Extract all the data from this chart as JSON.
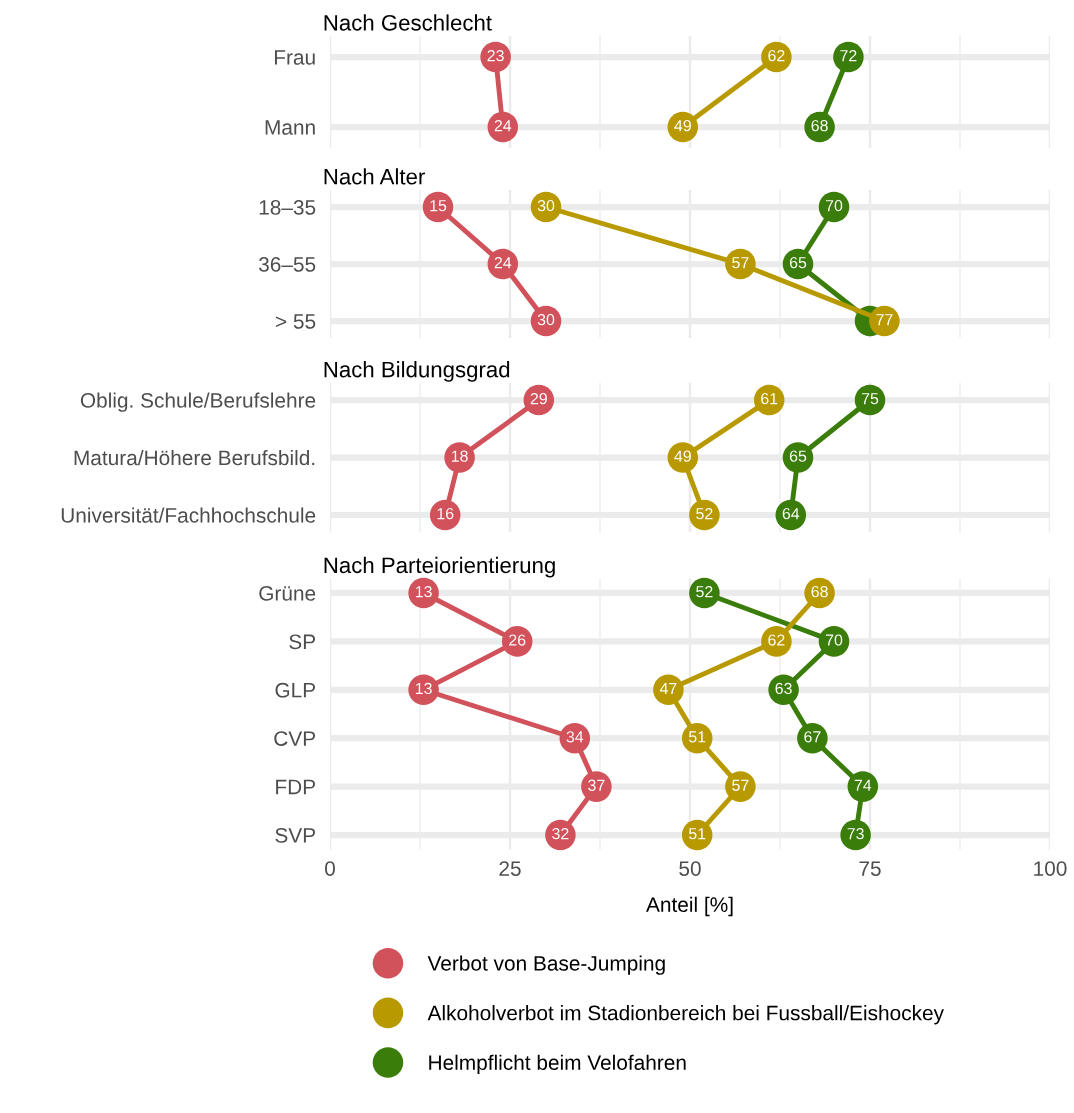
{
  "chart_data": [
    {
      "type": "line",
      "orientation": "horizontal",
      "title": "Nach Geschlecht",
      "categories": [
        "Frau",
        "Mann"
      ],
      "xlim": [
        0,
        100
      ],
      "xticks": [
        0,
        {
          "value": 12.5,
          "label": null
        },
        25,
        {
          "value": 37.5,
          "label": null
        },
        50,
        {
          "value": 62.5,
          "label": null
        },
        75,
        {
          "value": 87.5,
          "label": null
        },
        100
      ],
      "tick_labels": "y",
      "grid": true,
      "marker": "circle",
      "line_style": "solid",
      "data_labels": true,
      "series": [
        {
          "color": "#d1525a",
          "values": [
            23,
            24
          ]
        },
        {
          "color": "#b89a00",
          "values": [
            62,
            49
          ]
        },
        {
          "color": "#3a7d0a",
          "values": [
            72,
            68
          ]
        }
      ]
    },
    {
      "type": "line",
      "orientation": "horizontal",
      "title": "Nach Alter",
      "categories": [
        "18–35",
        "36–55",
        "> 55"
      ],
      "xlim": [
        0,
        100
      ],
      "xticks": [
        0,
        {
          "value": 12.5,
          "label": null
        },
        25,
        {
          "value": 37.5,
          "label": null
        },
        50,
        {
          "value": 62.5,
          "label": null
        },
        75,
        {
          "value": 87.5,
          "label": null
        },
        100
      ],
      "tick_labels": "y",
      "grid": true,
      "marker": "circle",
      "line_style": "solid",
      "data_labels": true,
      "series": [
        {
          "color": "#d1525a",
          "values": [
            15,
            24,
            30
          ]
        },
        {
          "color": "#b89a00",
          "values": [
            30,
            57,
            77
          ]
        },
        {
          "color": "#3a7d0a",
          "values": [
            70,
            65,
            75
          ],
          "value_labels": [
            "70",
            "65",
            null
          ]
        }
      ]
    },
    {
      "type": "line",
      "orientation": "horizontal",
      "title": "Nach Bildungsgrad",
      "categories": [
        "Oblig. Schule/Berufslehre",
        "Matura/Höhere Berufsbild.",
        "Universität/Fachhochschule"
      ],
      "xlim": [
        0,
        100
      ],
      "xticks": [
        0,
        {
          "value": 12.5,
          "label": null
        },
        25,
        {
          "value": 37.5,
          "label": null
        },
        50,
        {
          "value": 62.5,
          "label": null
        },
        75,
        {
          "value": 87.5,
          "label": null
        },
        100
      ],
      "tick_labels": "y",
      "grid": true,
      "marker": "circle",
      "line_style": "solid",
      "data_labels": true,
      "series": [
        {
          "color": "#d1525a",
          "values": [
            29,
            18,
            16
          ]
        },
        {
          "color": "#b89a00",
          "values": [
            61,
            49,
            52
          ]
        },
        {
          "color": "#3a7d0a",
          "values": [
            75,
            65,
            64
          ]
        }
      ]
    },
    {
      "type": "line",
      "orientation": "horizontal",
      "title": "Nach Parteiorientierung",
      "xlabel": "Anteil [%]",
      "categories": [
        "Grüne",
        "SP",
        "GLP",
        "CVP",
        "FDP",
        "SVP"
      ],
      "xlim": [
        0,
        100
      ],
      "xticks": [
        0,
        {
          "value": 12.5,
          "label": null
        },
        25,
        {
          "value": 37.5,
          "label": null
        },
        50,
        {
          "value": 62.5,
          "label": null
        },
        75,
        {
          "value": 87.5,
          "label": null
        },
        100
      ],
      "grid": true,
      "marker": "circle",
      "line_style": "solid",
      "data_labels": true,
      "legend": "bottom",
      "series": [
        {
          "name": "Verbot von Base-Jumping",
          "color": "#d1525a",
          "values": [
            13,
            26,
            13,
            34,
            37,
            32
          ]
        },
        {
          "name": "Alkoholverbot im Stadionbereich bei Fussball/Eishockey",
          "color": "#b89a00",
          "values": [
            68,
            62,
            47,
            51,
            57,
            51
          ]
        },
        {
          "name": "Helmpflicht beim Velofahren",
          "color": "#3a7d0a",
          "values": [
            52,
            70,
            63,
            67,
            74,
            73
          ]
        }
      ]
    }
  ]
}
